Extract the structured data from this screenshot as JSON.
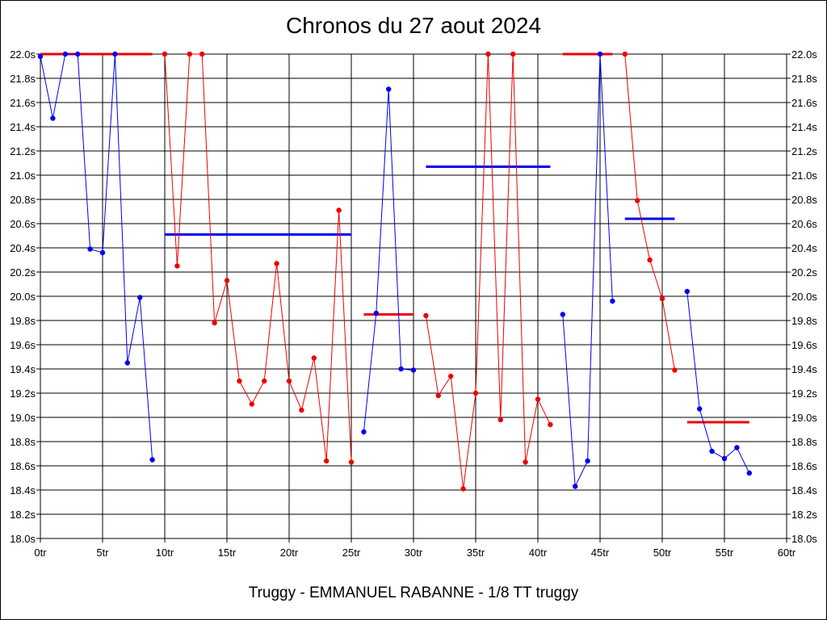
{
  "title": "Chronos du 27 aout 2024",
  "subtitle": "Truggy - EMMANUEL RABANNE - 1/8 TT truggy",
  "colors": {
    "blue": "#0000ee",
    "red": "#ee0000",
    "grid": "#000000"
  },
  "chart_data": {
    "type": "line",
    "title": "Chronos du 27 aout 2024",
    "xlim": [
      0,
      60
    ],
    "ylim": [
      18.0,
      22.0
    ],
    "x_ticks": [
      0,
      5,
      10,
      15,
      20,
      25,
      30,
      35,
      40,
      45,
      50,
      55,
      60
    ],
    "x_tick_labels": [
      "0tr",
      "5tr",
      "10tr",
      "15tr",
      "20tr",
      "25tr",
      "30tr",
      "35tr",
      "40tr",
      "45tr",
      "50tr",
      "55tr",
      "60tr"
    ],
    "y_ticks": [
      18.0,
      18.2,
      18.4,
      18.6,
      18.8,
      19.0,
      19.2,
      19.4,
      19.6,
      19.8,
      20.0,
      20.2,
      20.4,
      20.6,
      20.8,
      21.0,
      21.2,
      21.4,
      21.6,
      21.8,
      22.0
    ],
    "y_tick_labels": [
      "18.0s",
      "18.2s",
      "18.4s",
      "18.6s",
      "18.8s",
      "19.0s",
      "19.2s",
      "19.4s",
      "19.6s",
      "19.8s",
      "20.0s",
      "20.2s",
      "20.4s",
      "20.6s",
      "20.8s",
      "21.0s",
      "21.2s",
      "21.4s",
      "21.6s",
      "21.8s",
      "22.0s"
    ],
    "grid": true,
    "series": [
      {
        "color": "blue",
        "x": [
          0,
          1,
          2,
          3,
          4,
          5,
          6,
          7,
          8,
          9
        ],
        "y": [
          21.98,
          21.47,
          22.0,
          22.0,
          20.39,
          20.36,
          22.0,
          19.45,
          19.99,
          18.65
        ]
      },
      {
        "color": "red",
        "x": [
          10,
          11,
          12,
          13,
          14,
          15,
          16,
          17,
          18,
          19,
          20,
          21,
          22,
          23,
          24,
          25
        ],
        "y": [
          22.0,
          20.25,
          22.0,
          22.0,
          19.78,
          20.13,
          19.3,
          19.11,
          19.3,
          20.27,
          19.3,
          19.06,
          19.49,
          18.64,
          20.71,
          18.63
        ]
      },
      {
        "color": "blue",
        "x": [
          26,
          27,
          28,
          29,
          30
        ],
        "y": [
          18.88,
          19.86,
          21.71,
          19.4,
          19.39
        ]
      },
      {
        "color": "red",
        "x": [
          31,
          32,
          33,
          34,
          35,
          36,
          37,
          38,
          39,
          40,
          41
        ],
        "y": [
          19.84,
          19.18,
          19.34,
          18.41,
          19.2,
          22.0,
          18.98,
          22.0,
          18.63,
          19.15,
          18.94
        ]
      },
      {
        "color": "blue",
        "x": [
          42,
          43,
          44,
          45,
          46
        ],
        "y": [
          19.85,
          18.43,
          18.64,
          22.0,
          19.96
        ]
      },
      {
        "color": "red",
        "x": [
          47,
          48,
          49,
          50,
          51
        ],
        "y": [
          22.0,
          20.79,
          20.3,
          19.98,
          19.39
        ]
      },
      {
        "color": "blue",
        "x": [
          52,
          53,
          54,
          55,
          56,
          57
        ],
        "y": [
          20.04,
          19.07,
          18.72,
          18.66,
          18.75,
          18.54
        ]
      }
    ],
    "average_lines": [
      {
        "color": "red",
        "x": [
          0,
          9
        ],
        "y": 22.0
      },
      {
        "color": "blue",
        "x": [
          10,
          25
        ],
        "y": 20.51
      },
      {
        "color": "red",
        "x": [
          26,
          30
        ],
        "y": 19.85
      },
      {
        "color": "blue",
        "x": [
          31,
          41
        ],
        "y": 21.07
      },
      {
        "color": "red",
        "x": [
          42,
          46
        ],
        "y": 22.0
      },
      {
        "color": "blue",
        "x": [
          47,
          51
        ],
        "y": 20.64
      },
      {
        "color": "red",
        "x": [
          52,
          57
        ],
        "y": 18.96
      }
    ]
  }
}
